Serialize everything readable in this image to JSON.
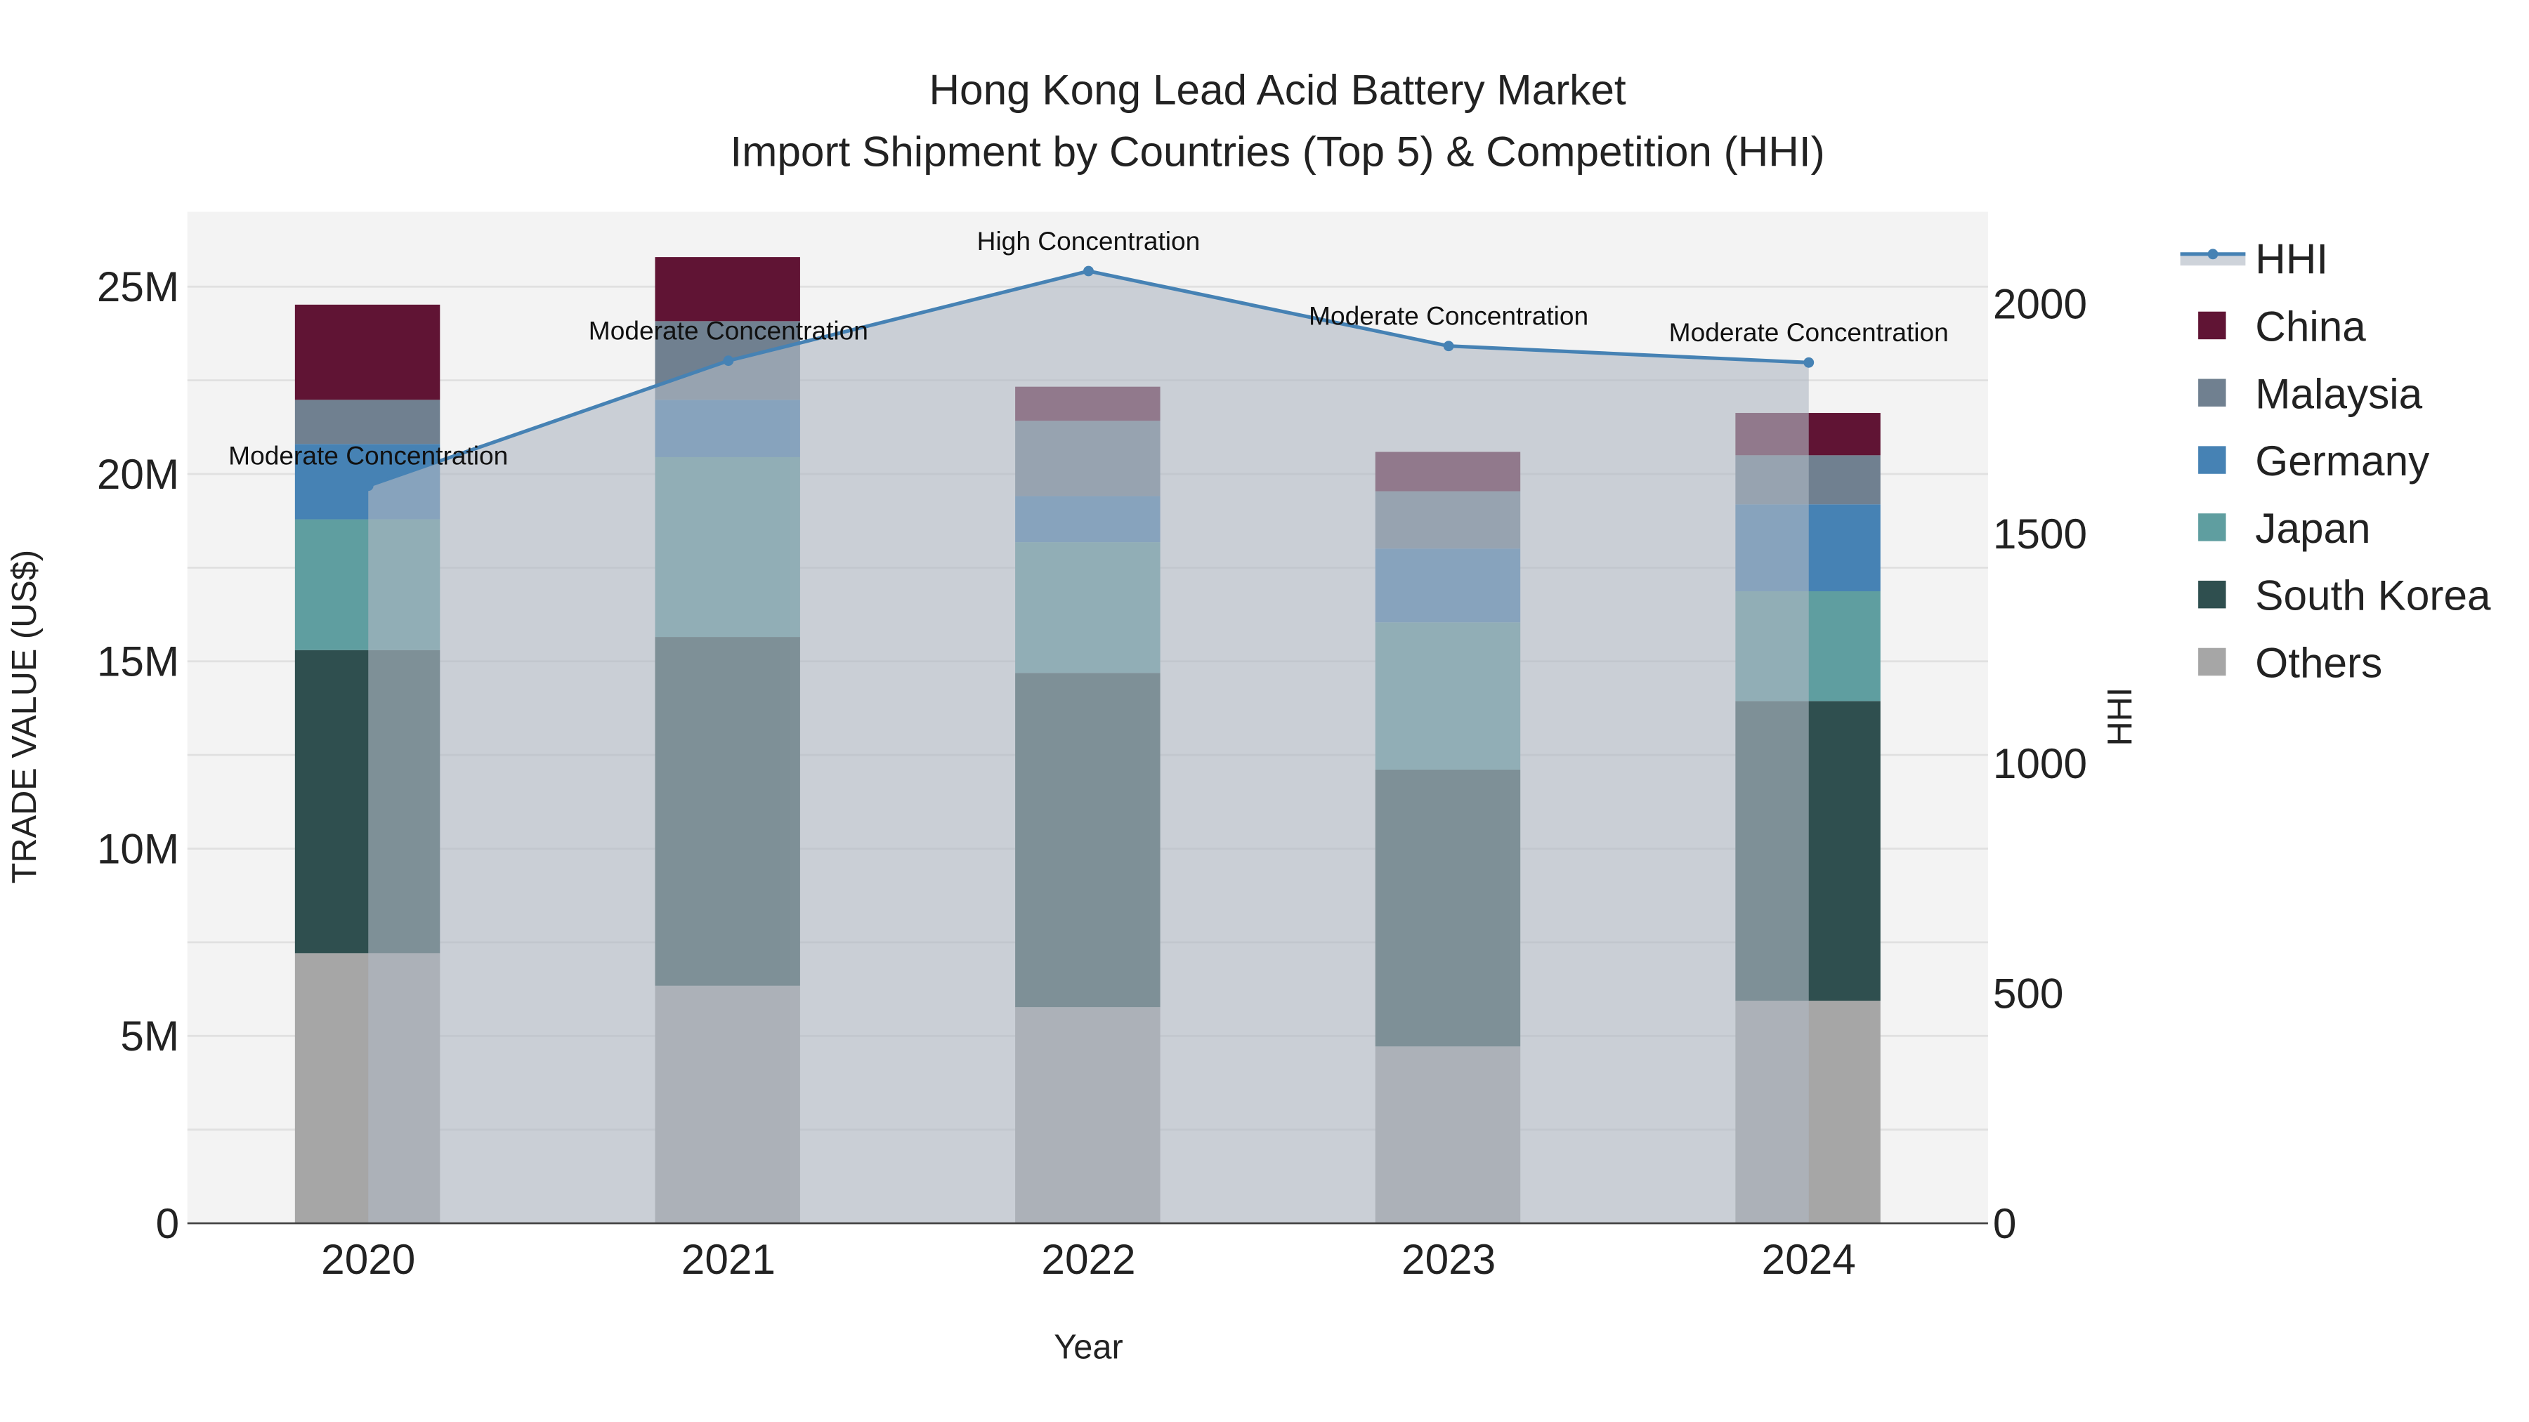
{
  "chart_data": {
    "type": "bar",
    "stacked": true,
    "title": "Hong Kong Lead Acid Battery Market",
    "subtitle": "Import Shipment by Countries (Top 5) & Competition (HHI)",
    "xlabel": "Year",
    "ylabel": "TRADE VALUE (US$)",
    "y2label": "HHI",
    "categories": [
      "2020",
      "2021",
      "2022",
      "2023",
      "2024"
    ],
    "ylim": [
      0,
      27000000
    ],
    "y2lim": [
      0,
      2200
    ],
    "yticks": [
      {
        "v": 0,
        "label": "0"
      },
      {
        "v": 5000000,
        "label": "5M"
      },
      {
        "v": 10000000,
        "label": "10M"
      },
      {
        "v": 15000000,
        "label": "15M"
      },
      {
        "v": 20000000,
        "label": "20M"
      },
      {
        "v": 25000000,
        "label": "25M"
      }
    ],
    "y2ticks": [
      {
        "v": 0,
        "label": "0"
      },
      {
        "v": 500,
        "label": "500"
      },
      {
        "v": 1000,
        "label": "1000"
      },
      {
        "v": 1500,
        "label": "1500"
      },
      {
        "v": 2000,
        "label": "2000"
      }
    ],
    "grid": true,
    "legend_position": "right",
    "series": [
      {
        "name": "Others",
        "color": "#a6a6a6",
        "values": [
          7210000,
          6340000,
          5770000,
          4720000,
          5940000
        ]
      },
      {
        "name": "South Korea",
        "color": "#2f4f4f",
        "values": [
          8090000,
          9310000,
          8920000,
          7390000,
          8000000
        ]
      },
      {
        "name": "Japan",
        "color": "#5f9ea0",
        "values": [
          3490000,
          4800000,
          3490000,
          3930000,
          2930000
        ]
      },
      {
        "name": "Germany",
        "color": "#4682b4",
        "values": [
          2010000,
          1530000,
          1230000,
          1970000,
          2320000
        ]
      },
      {
        "name": "Malaysia",
        "color": "#708090",
        "values": [
          1180000,
          2100000,
          2010000,
          1530000,
          1310000
        ]
      },
      {
        "name": "China",
        "color": "#601434",
        "values": [
          2540000,
          1710000,
          910000,
          1050000,
          1130000
        ]
      }
    ],
    "hhi": {
      "name": "HHI",
      "color": "#4682b4",
      "values": [
        1604,
        1876,
        2071,
        1908,
        1872
      ],
      "annotations": [
        "Moderate Concentration",
        "Moderate Concentration",
        "High Concentration",
        "Moderate Concentration",
        "Moderate Concentration"
      ]
    },
    "legend_order": [
      "HHI",
      "China",
      "Malaysia",
      "Germany",
      "Japan",
      "South Korea",
      "Others"
    ]
  }
}
